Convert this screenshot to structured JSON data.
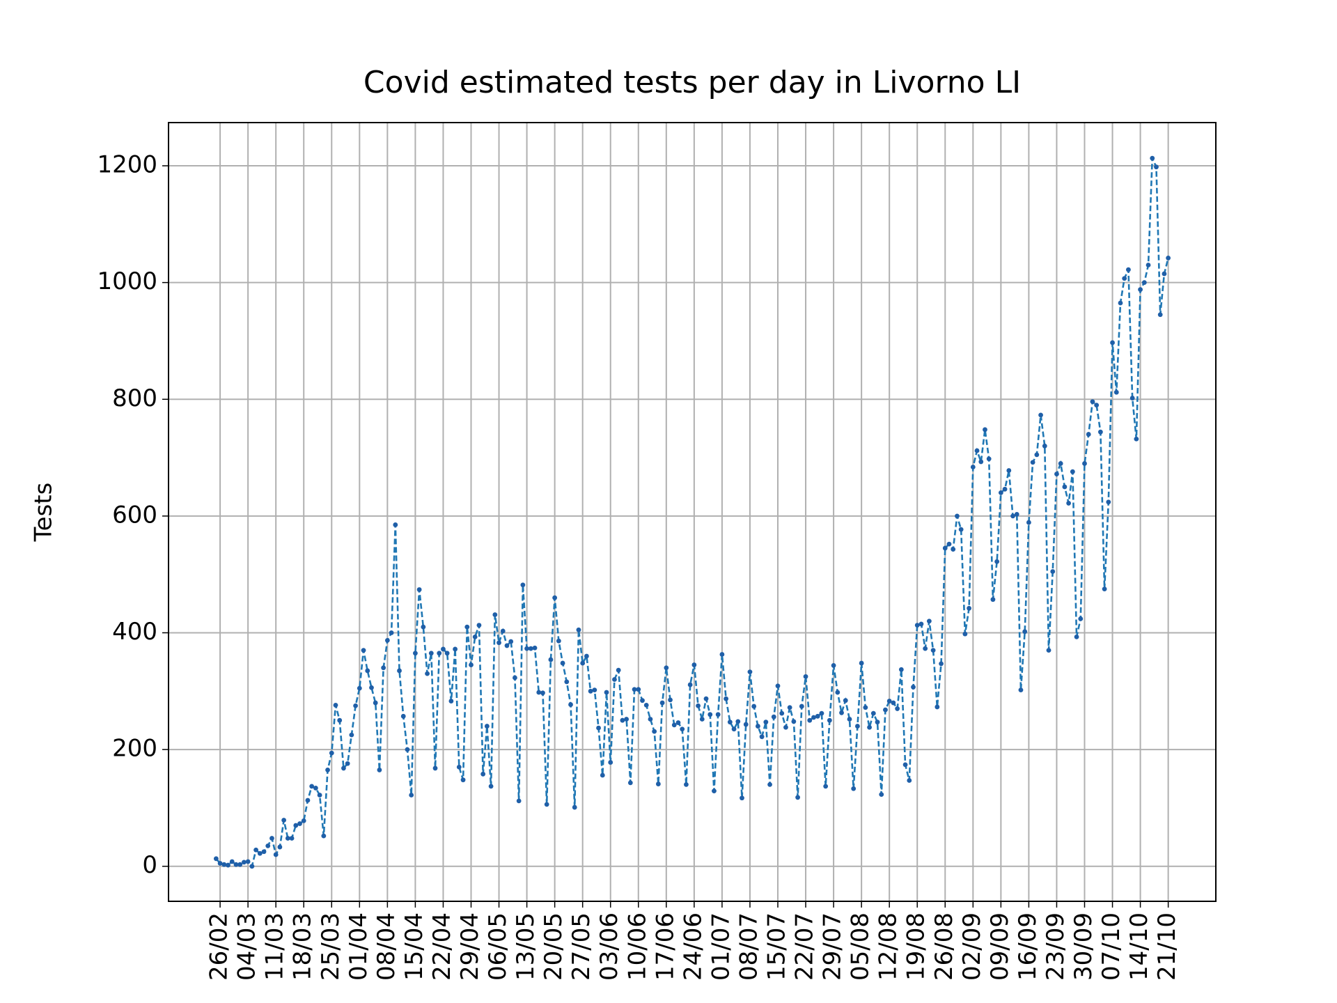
{
  "chart_data": {
    "type": "line",
    "title": "Covid estimated tests per day in Livorno LI",
    "y_label": "Tests",
    "color": "#1f77b4",
    "marker_color": "#1f5fa8",
    "grid": true,
    "line_style": "dashed",
    "x": [
      "25/02",
      "26/02",
      "27/02",
      "28/02",
      "29/02",
      "01/03",
      "02/03",
      "03/03",
      "04/03",
      "05/03",
      "06/03",
      "07/03",
      "08/03",
      "09/03",
      "10/03",
      "11/03",
      "12/03",
      "13/03",
      "14/03",
      "15/03",
      "16/03",
      "17/03",
      "18/03",
      "19/03",
      "20/03",
      "21/03",
      "22/03",
      "23/03",
      "24/03",
      "25/03",
      "26/03",
      "27/03",
      "28/03",
      "29/03",
      "30/03",
      "31/03",
      "01/04",
      "02/04",
      "03/04",
      "04/04",
      "05/04",
      "06/04",
      "07/04",
      "08/04",
      "09/04",
      "10/04",
      "11/04",
      "12/04",
      "13/04",
      "14/04",
      "15/04",
      "16/04",
      "17/04",
      "18/04",
      "19/04",
      "20/04",
      "21/04",
      "22/04",
      "23/04",
      "24/04",
      "25/04",
      "26/04",
      "27/04",
      "28/04",
      "29/04",
      "30/04",
      "01/05",
      "02/05",
      "03/05",
      "04/05",
      "05/05",
      "06/05",
      "07/05",
      "08/05",
      "09/05",
      "10/05",
      "11/05",
      "12/05",
      "13/05",
      "14/05",
      "15/05",
      "16/05",
      "17/05",
      "18/05",
      "19/05",
      "20/05",
      "21/05",
      "22/05",
      "23/05",
      "24/05",
      "25/05",
      "26/05",
      "27/05",
      "28/05",
      "29/05",
      "30/05",
      "31/05",
      "01/06",
      "02/06",
      "03/06",
      "04/06",
      "05/06",
      "06/06",
      "07/06",
      "08/06",
      "09/06",
      "10/06",
      "11/06",
      "12/06",
      "13/06",
      "14/06",
      "15/06",
      "16/06",
      "17/06",
      "18/06",
      "19/06",
      "20/06",
      "21/06",
      "22/06",
      "23/06",
      "24/06",
      "25/06",
      "26/06",
      "27/06",
      "28/06",
      "29/06",
      "30/06",
      "01/07",
      "02/07",
      "03/07",
      "04/07",
      "05/07",
      "06/07",
      "07/07",
      "08/07",
      "09/07",
      "10/07",
      "11/07",
      "12/07",
      "13/07",
      "14/07",
      "15/07",
      "16/07",
      "17/07",
      "18/07",
      "19/07",
      "20/07",
      "21/07",
      "22/07",
      "23/07",
      "24/07",
      "25/07",
      "26/07",
      "27/07",
      "28/07",
      "29/07",
      "30/07",
      "31/07",
      "01/08",
      "02/08",
      "03/08",
      "04/08",
      "05/08",
      "06/08",
      "07/08",
      "08/08",
      "09/08",
      "10/08",
      "11/08",
      "12/08",
      "13/08",
      "14/08",
      "15/08",
      "16/08",
      "17/08",
      "18/08",
      "19/08",
      "20/08",
      "21/08",
      "22/08",
      "23/08",
      "24/08",
      "25/08",
      "26/08",
      "27/08",
      "28/08",
      "29/08",
      "30/08",
      "31/08",
      "01/09",
      "02/09",
      "03/09",
      "04/09",
      "05/09",
      "06/09",
      "07/09",
      "08/09",
      "09/09",
      "10/09",
      "11/09",
      "12/09",
      "13/09",
      "14/09",
      "15/09",
      "16/09",
      "17/09",
      "18/09",
      "19/09",
      "20/09",
      "21/09",
      "22/09",
      "23/09",
      "24/09",
      "25/09",
      "26/09",
      "27/09",
      "28/09",
      "29/09",
      "30/09",
      "01/10",
      "02/10",
      "03/10",
      "04/10",
      "05/10",
      "06/10",
      "07/10",
      "08/10",
      "09/10",
      "10/10",
      "11/10",
      "12/10",
      "13/10",
      "14/10",
      "15/10",
      "16/10",
      "17/10",
      "18/10",
      "19/10",
      "20/10",
      "21/10"
    ],
    "values": [
      13,
      5,
      3,
      2,
      8,
      3,
      3,
      7,
      8,
      0,
      28,
      22,
      25,
      35,
      48,
      20,
      33,
      79,
      48,
      48,
      70,
      73,
      78,
      113,
      137,
      134,
      122,
      52,
      165,
      194,
      276,
      250,
      168,
      176,
      225,
      275,
      305,
      370,
      335,
      306,
      280,
      165,
      340,
      387,
      400,
      585,
      335,
      257,
      200,
      122,
      365,
      474,
      410,
      330,
      365,
      168,
      365,
      372,
      365,
      283,
      372,
      170,
      148,
      410,
      345,
      393,
      413,
      158,
      240,
      137,
      431,
      383,
      403,
      378,
      385,
      323,
      112,
      482,
      373,
      373,
      374,
      298,
      297,
      106,
      354,
      460,
      386,
      348,
      316,
      277,
      101,
      405,
      348,
      360,
      300,
      302,
      237,
      156,
      298,
      178,
      320,
      336,
      250,
      252,
      143,
      303,
      303,
      284,
      276,
      252,
      231,
      141,
      280,
      340,
      285,
      242,
      246,
      235,
      140,
      311,
      345,
      275,
      252,
      287,
      260,
      129,
      260,
      363,
      287,
      247,
      235,
      248,
      117,
      243,
      333,
      274,
      240,
      222,
      247,
      140,
      256,
      309,
      262,
      238,
      272,
      248,
      118,
      274,
      325,
      250,
      255,
      257,
      262,
      137,
      250,
      344,
      298,
      263,
      284,
      252,
      133,
      240,
      348,
      272,
      238,
      262,
      247,
      123,
      268,
      283,
      280,
      270,
      337,
      174,
      147,
      307,
      413,
      415,
      373,
      420,
      370,
      273,
      347,
      545,
      552,
      543,
      600,
      577,
      398,
      442,
      684,
      712,
      693,
      748,
      698,
      457,
      522,
      640,
      646,
      678,
      600,
      603,
      302,
      402,
      589,
      692,
      705,
      773,
      720,
      370,
      505,
      672,
      690,
      650,
      622,
      676,
      393,
      424,
      690,
      740,
      796,
      790,
      744,
      475,
      624,
      897,
      812,
      965,
      1007,
      1022,
      802,
      732,
      988,
      1000,
      1030,
      1213,
      1198,
      945,
      1015,
      1042
    ],
    "xticks": [
      "26/02",
      "04/03",
      "11/03",
      "18/03",
      "25/03",
      "01/04",
      "08/04",
      "15/04",
      "22/04",
      "29/04",
      "06/05",
      "13/05",
      "20/05",
      "27/05",
      "03/06",
      "10/06",
      "17/06",
      "24/06",
      "01/07",
      "08/07",
      "15/07",
      "22/07",
      "29/07",
      "05/08",
      "12/08",
      "19/08",
      "26/08",
      "02/09",
      "09/09",
      "16/09",
      "23/09",
      "30/09",
      "07/10",
      "14/10",
      "21/10"
    ],
    "ylim": [
      -60,
      1274
    ],
    "yticks": [
      0,
      200,
      400,
      600,
      800,
      1000,
      1200
    ]
  }
}
